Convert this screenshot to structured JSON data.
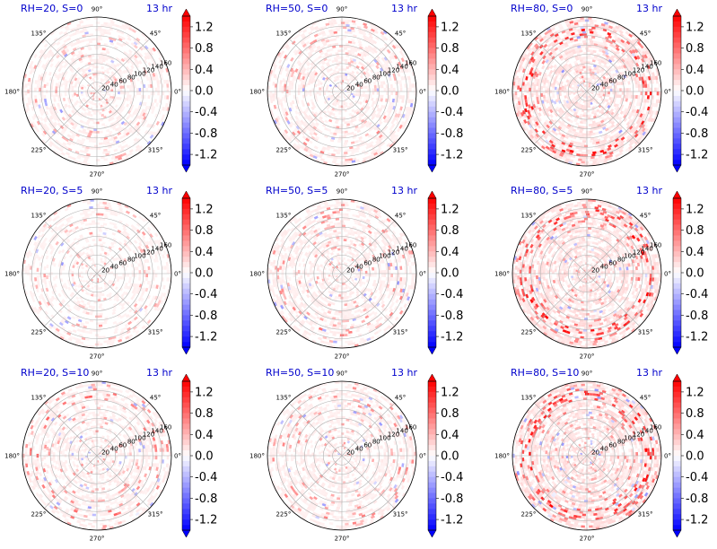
{
  "figure": {
    "colorbar": {
      "ticks": [
        "1.2",
        "0.8",
        "0.4",
        "0.0",
        "-0.4",
        "-0.8",
        "-1.2"
      ],
      "range": [
        -1.4,
        1.4
      ],
      "colormap": "bwr",
      "colors": {
        "min": "#0000ff",
        "mid": "#ffffff",
        "max": "#ff0000"
      }
    },
    "radial_ticks": [
      "20",
      "40",
      "60",
      "80",
      "100",
      "120",
      "140",
      "160"
    ],
    "angle_ticks": [
      "90°",
      "45°",
      "0°",
      "315°",
      "270°",
      "225°",
      "180°",
      "135°"
    ]
  },
  "chart_data": [
    {
      "type": "heatmap",
      "projection": "polar",
      "title": "RH=20, S=0",
      "time_label": "13 hr",
      "rmax": 160,
      "grid": true,
      "intensity": 0.35,
      "ring_bias": 0.0
    },
    {
      "type": "heatmap",
      "projection": "polar",
      "title": "RH=50, S=0",
      "time_label": "13 hr",
      "rmax": 160,
      "grid": true,
      "intensity": 0.4,
      "ring_bias": 0.1
    },
    {
      "type": "heatmap",
      "projection": "polar",
      "title": "RH=80, S=0",
      "time_label": "13 hr",
      "rmax": 160,
      "grid": true,
      "intensity": 0.7,
      "ring_bias": 0.8
    },
    {
      "type": "heatmap",
      "projection": "polar",
      "title": "RH=20, S=5",
      "time_label": "13 hr",
      "rmax": 160,
      "grid": true,
      "intensity": 0.3,
      "ring_bias": 0.0
    },
    {
      "type": "heatmap",
      "projection": "polar",
      "title": "RH=50, S=5",
      "time_label": "13 hr",
      "rmax": 160,
      "grid": true,
      "intensity": 0.4,
      "ring_bias": 0.2
    },
    {
      "type": "heatmap",
      "projection": "polar",
      "title": "RH=80, S=5",
      "time_label": "13 hr",
      "rmax": 160,
      "grid": true,
      "intensity": 0.75,
      "ring_bias": 0.8
    },
    {
      "type": "heatmap",
      "projection": "polar",
      "title": "RH=20, S=10",
      "time_label": "13 hr",
      "rmax": 160,
      "grid": true,
      "intensity": 0.4,
      "ring_bias": 0.3
    },
    {
      "type": "heatmap",
      "projection": "polar",
      "title": "RH=50, S=10",
      "time_label": "13 hr",
      "rmax": 160,
      "grid": true,
      "intensity": 0.4,
      "ring_bias": 0.2
    },
    {
      "type": "heatmap",
      "projection": "polar",
      "title": "RH=80, S=10",
      "time_label": "13 hr",
      "rmax": 160,
      "grid": true,
      "intensity": 0.75,
      "ring_bias": 0.8
    }
  ]
}
